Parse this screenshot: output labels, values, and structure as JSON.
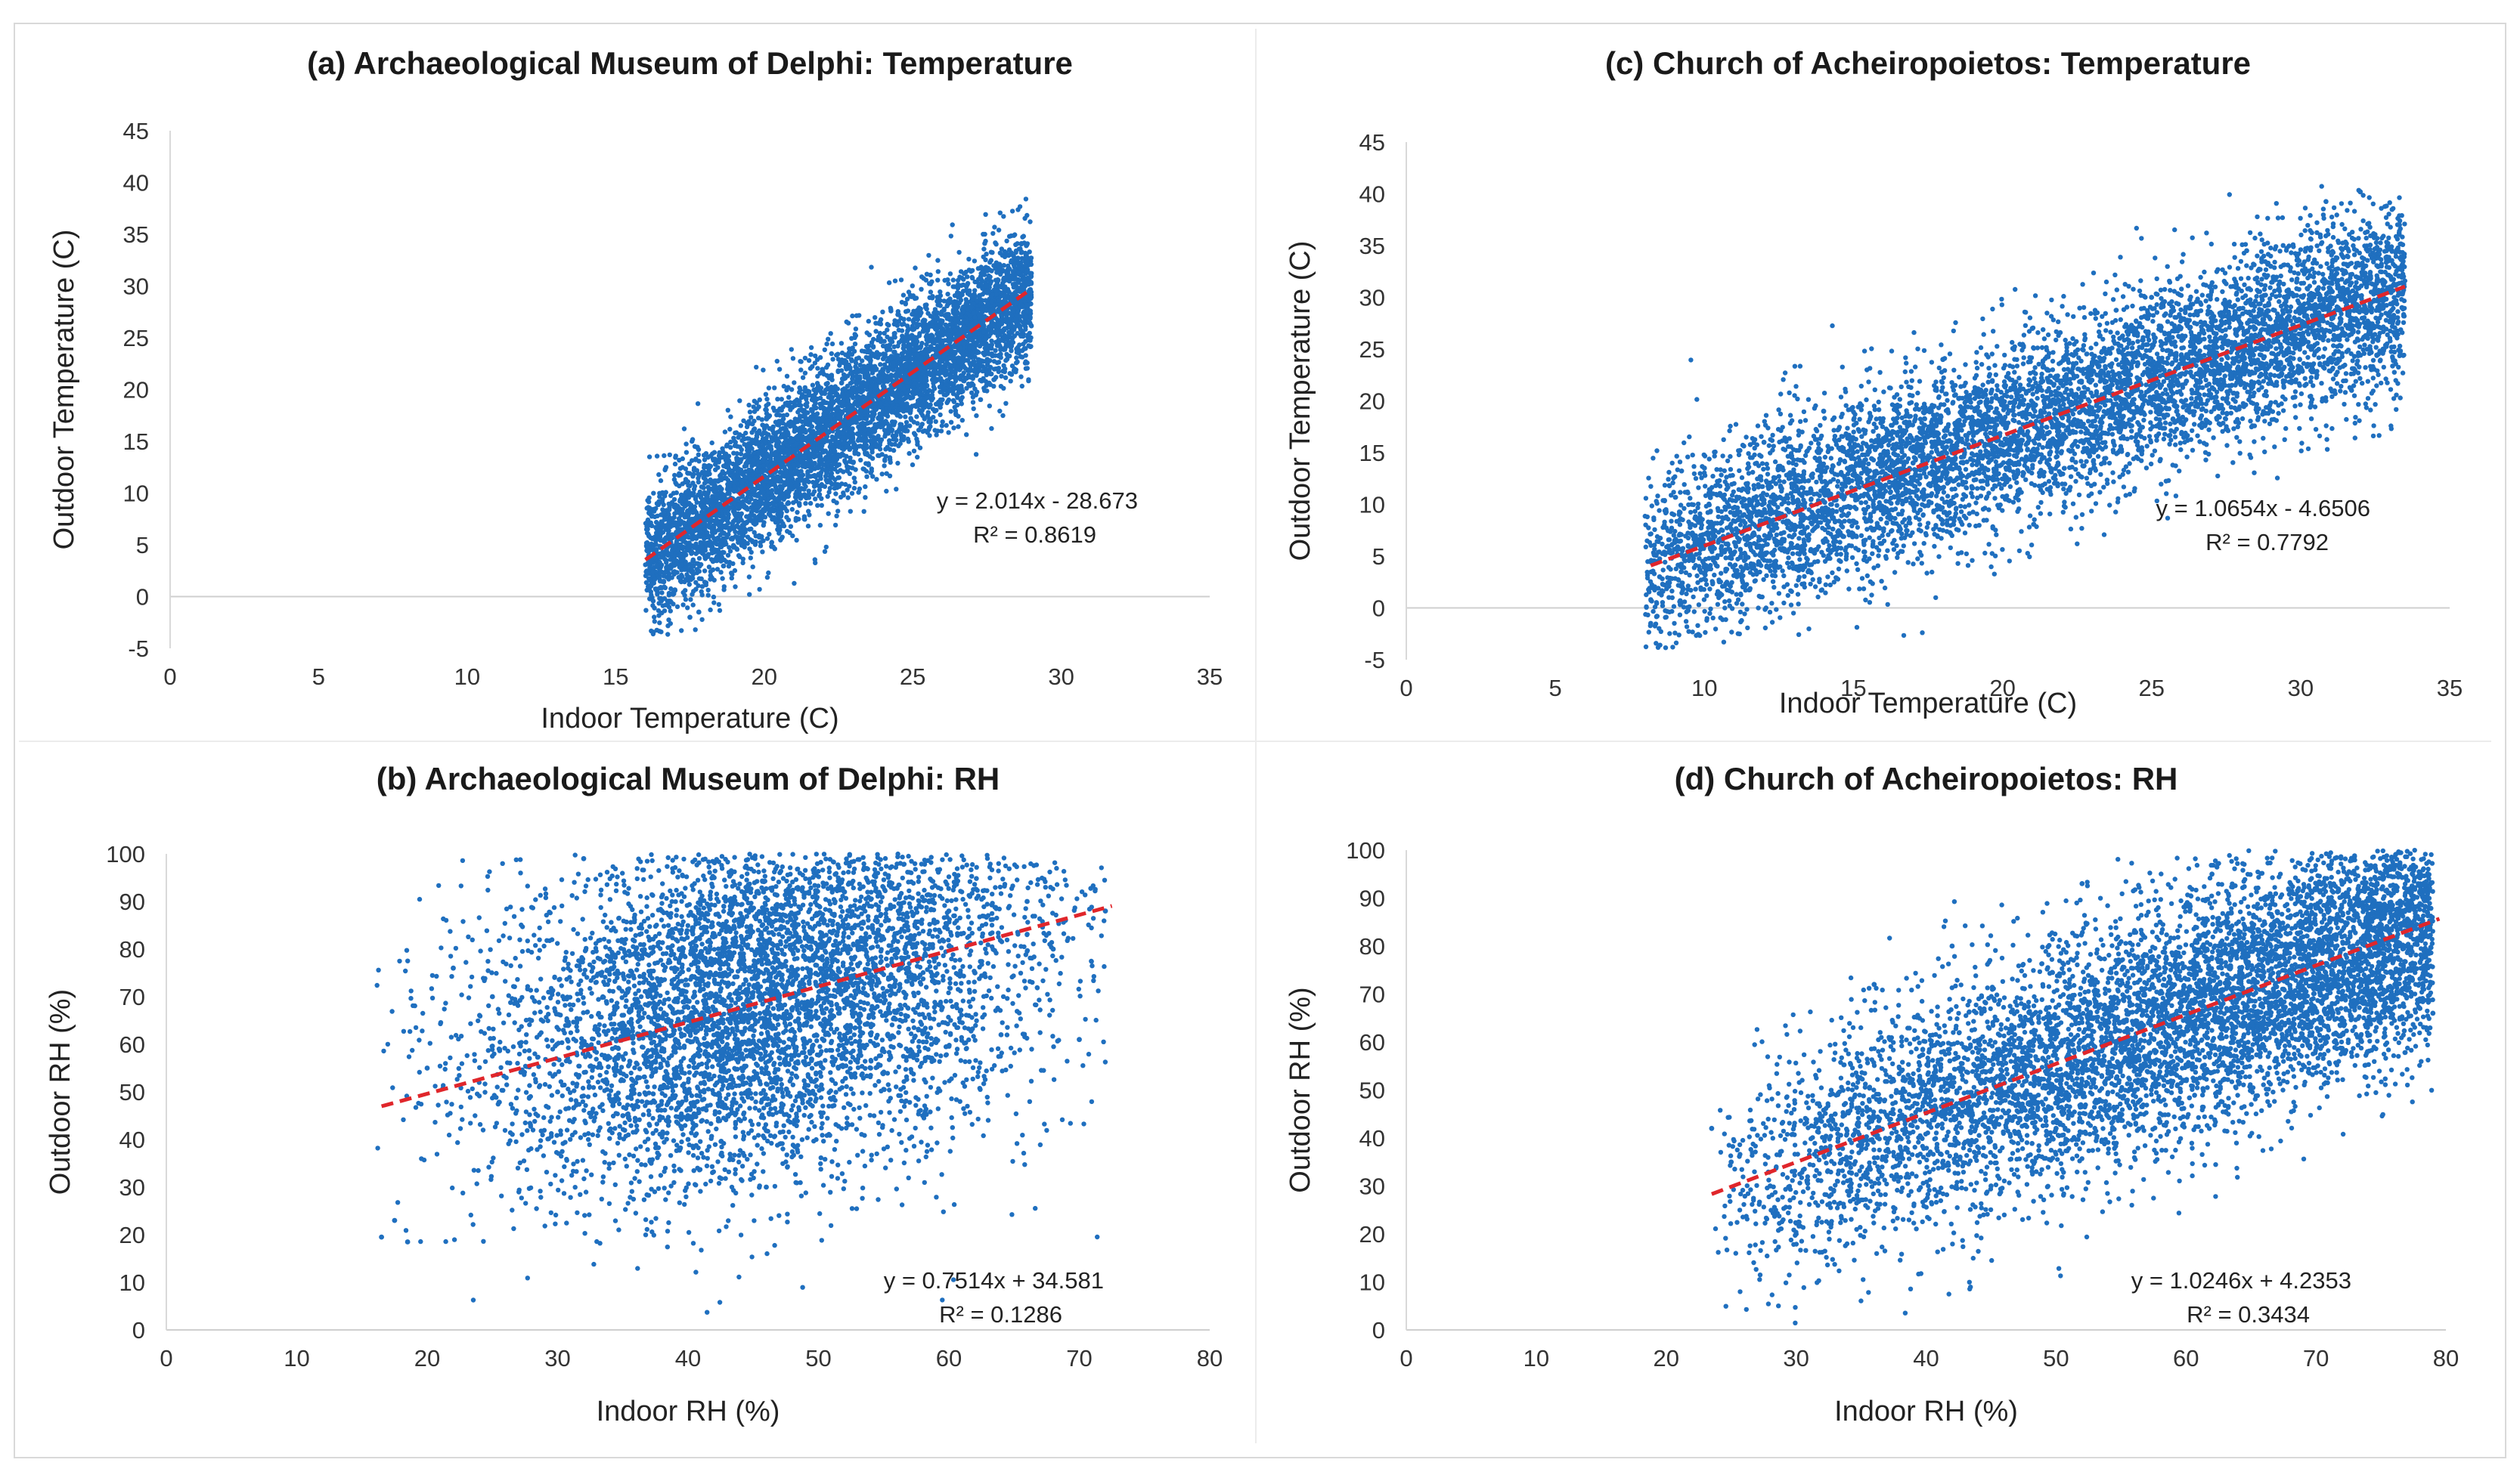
{
  "chart_data": [
    {
      "id": "a",
      "type": "scatter",
      "title": "(a) Archaeological Museum of Delphi: Temperature",
      "xlabel": "Indoor Temperature (C)",
      "ylabel": "Outdoor Temperature (C)",
      "xlim": [
        0,
        35
      ],
      "ylim": [
        -5,
        45
      ],
      "xticks": [
        0,
        5,
        10,
        15,
        20,
        25,
        30,
        35
      ],
      "yticks": [
        -5,
        0,
        5,
        10,
        15,
        20,
        25,
        30,
        35,
        40,
        45
      ],
      "series": [
        {
          "name": "observations",
          "color": "#1f6fbf",
          "approx_points": 6000,
          "cloud": {
            "x_range": [
              16,
              29
            ],
            "slope": 2.014,
            "intercept": -28.673,
            "spread": 3.5
          },
          "x": [
            16.2,
            16.8,
            17.0,
            17.4,
            17.6,
            18.0,
            18.5,
            19.0,
            19.5,
            20.0,
            20.5,
            21.0,
            21.5,
            22.0,
            22.5,
            23.0,
            23.5,
            24.0,
            24.5,
            25.0,
            25.5,
            26.0,
            26.5,
            27.0,
            27.5,
            28.0,
            28.3,
            28.6,
            28.9,
            17.5,
            17.8,
            16.5
          ],
          "y": [
            3.8,
            5.1,
            6.0,
            8.9,
            7.2,
            8.0,
            9.7,
            10.5,
            11.8,
            12.2,
            13.4,
            13.8,
            15.1,
            15.9,
            16.6,
            17.8,
            18.4,
            19.9,
            20.7,
            21.6,
            22.9,
            23.9,
            24.8,
            25.6,
            26.9,
            27.8,
            28.9,
            29.5,
            30.6,
            -2.0,
            -1.5,
            1.5
          ]
        },
        {
          "name": "trendline",
          "style": "dashed",
          "color": "#e0262b",
          "x": [
            16,
            29
          ],
          "y": [
            3.55,
            29.73
          ]
        }
      ],
      "annotation": {
        "equation": "y = 2.014x - 28.673",
        "r2": "R² = 0.8619"
      }
    },
    {
      "id": "b",
      "type": "scatter",
      "title": "(b) Archaeological Museum of Delphi: RH",
      "xlabel": "Indoor RH (%)",
      "ylabel": "Outdoor RH (%)",
      "xlim": [
        0,
        80
      ],
      "ylim": [
        0,
        100
      ],
      "xticks": [
        0,
        10,
        20,
        30,
        40,
        50,
        60,
        70,
        80
      ],
      "yticks": [
        0,
        10,
        20,
        30,
        40,
        50,
        60,
        70,
        80,
        90,
        100
      ],
      "series": [
        {
          "name": "observations",
          "color": "#1f6fbf",
          "approx_points": 6000,
          "cloud": {
            "x_range": [
              16,
              72
            ],
            "slope": 0.7514,
            "intercept": 34.581,
            "spread": 17
          },
          "x": [
            16.5,
            17.5,
            18.5,
            20,
            22,
            25,
            28,
            30,
            32,
            35,
            38,
            40,
            42,
            44,
            46,
            48,
            50,
            52,
            54,
            56,
            58,
            60,
            62,
            64,
            66,
            68,
            70,
            72
          ],
          "y": [
            19.5,
            23.0,
            18.5,
            55,
            76,
            70,
            65,
            50,
            99,
            45,
            88,
            40,
            95,
            60,
            30,
            85,
            70,
            92,
            55,
            80,
            45,
            88,
            75,
            62,
            90,
            80,
            61,
            88
          ]
        },
        {
          "name": "trendline",
          "style": "dashed",
          "color": "#e0262b",
          "x": [
            16.5,
            72.5
          ],
          "y": [
            46.98,
            89.06
          ]
        }
      ],
      "annotation": {
        "equation": "y = 0.7514x + 34.581",
        "r2": "R² = 0.1286"
      }
    },
    {
      "id": "c",
      "type": "scatter",
      "title": "(c) Church of Acheiropoietos: Temperature",
      "xlabel": "Indoor Temperature (C)",
      "ylabel": "Outdoor Temperature (C)",
      "xlim": [
        0,
        35
      ],
      "ylim": [
        -5,
        45
      ],
      "xticks": [
        0,
        5,
        10,
        15,
        20,
        25,
        30,
        35
      ],
      "yticks": [
        -5,
        0,
        5,
        10,
        15,
        20,
        25,
        30,
        35,
        40,
        45
      ],
      "series": [
        {
          "name": "observations",
          "color": "#1f6fbf",
          "approx_points": 7000,
          "cloud": {
            "x_range": [
              8,
              33.5
            ],
            "slope": 1.0654,
            "intercept": -4.6506,
            "spread": 4.5
          },
          "x": [
            8.2,
            8.5,
            9.0,
            9.5,
            10.0,
            11.0,
            12.0,
            13.0,
            14.0,
            15.0,
            16.0,
            17.0,
            18.0,
            19.0,
            20.0,
            21.0,
            22.0,
            23.0,
            24.0,
            25.0,
            26.0,
            27.0,
            28.0,
            29.0,
            30.0,
            31.0,
            32.0,
            32.5,
            33.0,
            33.4
          ],
          "y": [
            -1.5,
            3.0,
            6.5,
            5.0,
            13.5,
            9.0,
            16.0,
            12.0,
            19.0,
            15.0,
            11.0,
            14.0,
            24.0,
            17.0,
            20.0,
            27.0,
            16.0,
            22.0,
            20.0,
            30.0,
            24.0,
            28.0,
            25.0,
            33.0,
            27.0,
            30.0,
            40.2,
            34.0,
            31.0,
            29.0
          ]
        },
        {
          "name": "trendline",
          "style": "dashed",
          "color": "#e0262b",
          "x": [
            8.2,
            33.5
          ],
          "y": [
            4.09,
            31.04
          ]
        }
      ],
      "annotation": {
        "equation": "y = 1.0654x - 4.6506",
        "r2": "R² = 0.7792"
      }
    },
    {
      "id": "d",
      "type": "scatter",
      "title": "(d) Church of Acheiropoietos: RH",
      "xlabel": "Indoor RH (%)",
      "ylabel": "Outdoor RH (%)",
      "xlim": [
        0,
        80
      ],
      "ylim": [
        0,
        100
      ],
      "xticks": [
        0,
        10,
        20,
        30,
        40,
        50,
        60,
        70,
        80
      ],
      "yticks": [
        0,
        10,
        20,
        30,
        40,
        50,
        60,
        70,
        80,
        90,
        100
      ],
      "series": [
        {
          "name": "observations",
          "color": "#1f6fbf",
          "approx_points": 7000,
          "cloud": {
            "x_range": [
              23.5,
              79
            ],
            "slope": 1.0246,
            "intercept": 4.2353,
            "spread": 13
          },
          "x": [
            23.5,
            25,
            28,
            30,
            33,
            36,
            38,
            40,
            42,
            45,
            48,
            50,
            52,
            55,
            58,
            60,
            62,
            64,
            66,
            68,
            70,
            72,
            74,
            76,
            78,
            79
          ],
          "y": [
            42,
            35,
            30,
            20,
            45,
            72,
            40,
            50,
            80,
            30,
            60,
            42,
            93,
            55,
            85,
            70,
            95,
            60,
            90,
            75,
            88,
            65,
            92,
            96,
            67,
            66
          ]
        },
        {
          "name": "trendline",
          "style": "dashed",
          "color": "#e0262b",
          "x": [
            23.5,
            79.5
          ],
          "y": [
            28.31,
            85.69
          ]
        }
      ],
      "annotation": {
        "equation": "y = 1.0246x + 4.2353",
        "r2": "R² = 0.3434"
      }
    }
  ]
}
